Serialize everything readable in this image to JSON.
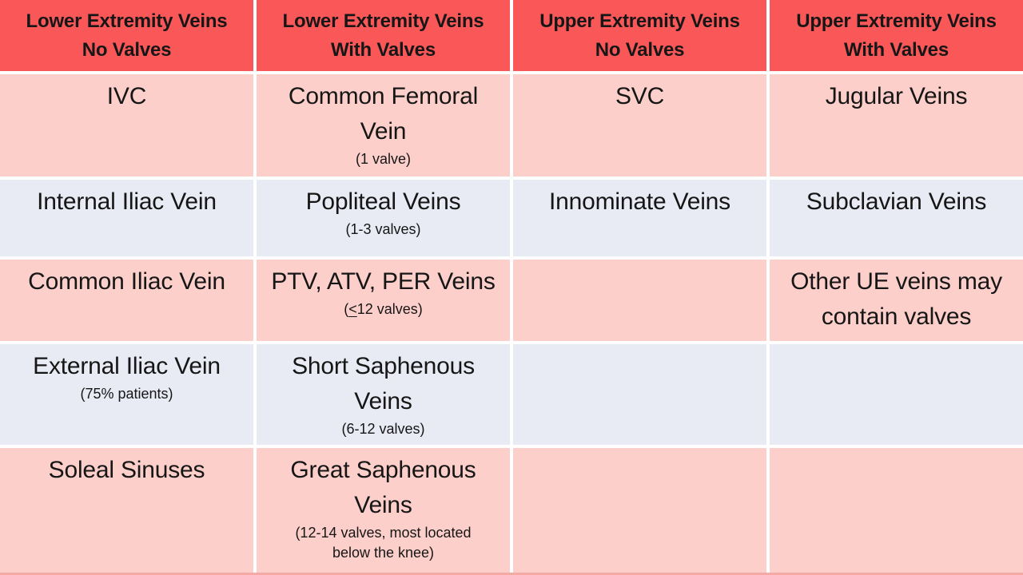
{
  "theme": {
    "header_bg": "#fa5858",
    "pink": "#fccfca",
    "lavender": "#e9ebf4",
    "text": "#161616",
    "gap": "#ffffff",
    "bottom_line": "#f5aaa6"
  },
  "table": {
    "headers": [
      {
        "lines": [
          "Lower Extremity Veins",
          "No Valves"
        ]
      },
      {
        "lines": [
          "Lower Extremity Veins",
          "With Valves"
        ]
      },
      {
        "lines": [
          "Upper Extremity Veins",
          "No Valves"
        ]
      },
      {
        "lines": [
          "Upper Extremity Veins",
          "With Valves"
        ]
      }
    ],
    "rows": [
      {
        "cells": [
          {
            "main": [
              "IVC"
            ]
          },
          {
            "main": [
              "Common Femoral",
              "Vein"
            ],
            "note": [
              "(1 valve)"
            ]
          },
          {
            "main": [
              "SVC"
            ]
          },
          {
            "main": [
              "Jugular Veins"
            ]
          }
        ]
      },
      {
        "cells": [
          {
            "main": [
              "Internal Iliac Vein"
            ]
          },
          {
            "main": [
              "Popliteal Veins"
            ],
            "note": [
              "(1-3 valves)"
            ]
          },
          {
            "main": [
              "Innominate Veins"
            ]
          },
          {
            "main": [
              "Subclavian Veins"
            ]
          }
        ]
      },
      {
        "cells": [
          {
            "main": [
              "Common Iliac Vein"
            ]
          },
          {
            "main": [
              "PTV, ATV, PER Veins"
            ],
            "note_parts": [
              "(",
              "<",
              "12 valves)"
            ]
          },
          {
            "main": []
          },
          {
            "main": [
              "Other UE veins may",
              "contain valves"
            ]
          }
        ]
      },
      {
        "cells": [
          {
            "main": [
              "External Iliac Vein"
            ],
            "note": [
              "(75% patients)"
            ]
          },
          {
            "main": [
              "Short Saphenous",
              "Veins"
            ],
            "note": [
              "(6-12 valves)"
            ]
          },
          {
            "main": []
          },
          {
            "main": []
          }
        ]
      },
      {
        "cells": [
          {
            "main": [
              "Soleal Sinuses"
            ]
          },
          {
            "main": [
              "Great Saphenous",
              "Veins"
            ],
            "note": [
              "(12-14 valves, most located",
              "below the knee)"
            ]
          },
          {
            "main": []
          },
          {
            "main": []
          }
        ]
      }
    ]
  }
}
